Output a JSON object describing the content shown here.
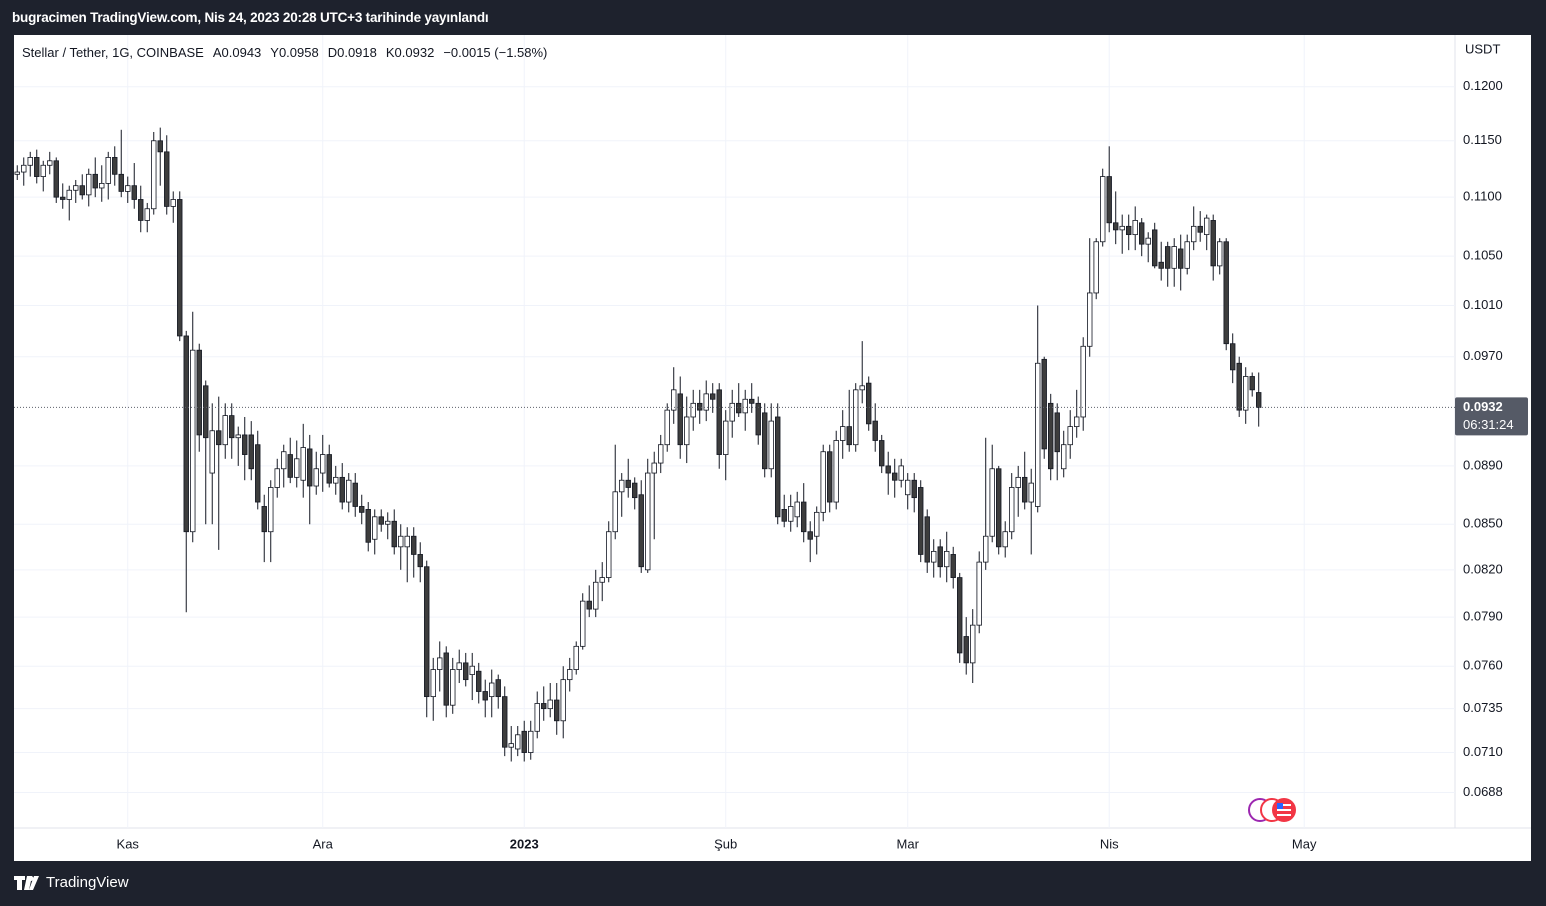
{
  "header": "bugracimen TradingView.com, Nis 24, 2023 20:28 UTC+3 tarihinde yayınlandı",
  "footer": "TradingView",
  "chart_data": {
    "type": "candlestick",
    "legend": {
      "symbol": "Stellar / Tether, 1G, COINBASE",
      "values": [
        "A0.0943",
        "Y0.0958",
        "D0.0918",
        "K0.0932",
        "−0.0015 (−1.58%)"
      ]
    },
    "y_unit": "USDT",
    "log_scale": true,
    "grid": true,
    "up_color": "#ffffff",
    "down_color": "#3d3d3d",
    "wick_color": "#131722",
    "ylim": [
      0.0669,
      0.125
    ],
    "yticks": [
      {
        "value": 0.12,
        "label": "0.1200"
      },
      {
        "value": 0.115,
        "label": "0.1150"
      },
      {
        "value": 0.11,
        "label": "0.1100"
      },
      {
        "value": 0.105,
        "label": "0.1050"
      },
      {
        "value": 0.101,
        "label": "0.1010"
      },
      {
        "value": 0.097,
        "label": "0.0970"
      },
      {
        "value": 0.089,
        "label": "0.0890"
      },
      {
        "value": 0.085,
        "label": "0.0850"
      },
      {
        "value": 0.082,
        "label": "0.0820"
      },
      {
        "value": 0.079,
        "label": "0.0790"
      },
      {
        "value": 0.076,
        "label": "0.0760"
      },
      {
        "value": 0.0735,
        "label": "0.0735"
      },
      {
        "value": 0.071,
        "label": "0.0710"
      },
      {
        "value": 0.0688,
        "label": "0.0688"
      }
    ],
    "xlim": [
      -0.5,
      221.2
    ],
    "xticks": [
      {
        "value": 17,
        "label": "Kas"
      },
      {
        "value": 47,
        "label": "Ara"
      },
      {
        "value": 78,
        "label": "2023"
      },
      {
        "value": 109,
        "label": "Şub"
      },
      {
        "value": 137,
        "label": "Mar"
      },
      {
        "value": 168,
        "label": "Nis"
      },
      {
        "value": 198,
        "label": "May"
      }
    ],
    "last_price": 0.0932,
    "countdown": "06:31:24",
    "ohlc": [
      [
        0.112,
        0.1128,
        0.1115,
        0.1122
      ],
      [
        0.1122,
        0.1135,
        0.111,
        0.1128
      ],
      [
        0.1128,
        0.114,
        0.1118,
        0.1135
      ],
      [
        0.1135,
        0.1142,
        0.1112,
        0.1118
      ],
      [
        0.1118,
        0.1132,
        0.1105,
        0.1128
      ],
      [
        0.1128,
        0.114,
        0.112,
        0.1132
      ],
      [
        0.1132,
        0.1135,
        0.1095,
        0.11
      ],
      [
        0.11,
        0.1112,
        0.109,
        0.1098
      ],
      [
        0.1098,
        0.111,
        0.108,
        0.1106
      ],
      [
        0.1106,
        0.1115,
        0.1095,
        0.111
      ],
      [
        0.111,
        0.112,
        0.1098,
        0.1102
      ],
      [
        0.1102,
        0.1125,
        0.1092,
        0.112
      ],
      [
        0.112,
        0.1135,
        0.11,
        0.1108
      ],
      [
        0.1108,
        0.1128,
        0.1096,
        0.1112
      ],
      [
        0.1112,
        0.114,
        0.1098,
        0.1135
      ],
      [
        0.1135,
        0.1145,
        0.111,
        0.112
      ],
      [
        0.112,
        0.116,
        0.11,
        0.1105
      ],
      [
        0.1105,
        0.1118,
        0.1095,
        0.111
      ],
      [
        0.111,
        0.113,
        0.109,
        0.1098
      ],
      [
        0.1098,
        0.111,
        0.107,
        0.108
      ],
      [
        0.108,
        0.1095,
        0.107,
        0.109
      ],
      [
        0.109,
        0.1158,
        0.1085,
        0.115
      ],
      [
        0.115,
        0.1162,
        0.111,
        0.114
      ],
      [
        0.114,
        0.1155,
        0.1085,
        0.1092
      ],
      [
        0.1092,
        0.1105,
        0.1078,
        0.1098
      ],
      [
        0.1098,
        0.1105,
        0.0982,
        0.0986
      ],
      [
        0.0986,
        0.099,
        0.0793,
        0.0845
      ],
      [
        0.0845,
        0.1005,
        0.0838,
        0.0975
      ],
      [
        0.0975,
        0.098,
        0.09,
        0.0912
      ],
      [
        0.0948,
        0.0952,
        0.085,
        0.091
      ],
      [
        0.0885,
        0.0935,
        0.085,
        0.0915
      ],
      [
        0.0915,
        0.094,
        0.0833,
        0.0905
      ],
      [
        0.0905,
        0.0935,
        0.0895,
        0.0926
      ],
      [
        0.0926,
        0.0935,
        0.0895,
        0.091
      ],
      [
        0.091,
        0.0918,
        0.089,
        0.0912
      ],
      [
        0.0912,
        0.0925,
        0.088,
        0.0898
      ],
      [
        0.0912,
        0.0922,
        0.088,
        0.0888
      ],
      [
        0.0905,
        0.0915,
        0.086,
        0.0865
      ],
      [
        0.0862,
        0.087,
        0.0825,
        0.0845
      ],
      [
        0.0845,
        0.088,
        0.0825,
        0.0875
      ],
      [
        0.0875,
        0.0895,
        0.0868,
        0.0888
      ],
      [
        0.0888,
        0.0905,
        0.0875,
        0.09
      ],
      [
        0.0898,
        0.091,
        0.0878,
        0.0882
      ],
      [
        0.0882,
        0.0908,
        0.0875,
        0.0895
      ],
      [
        0.088,
        0.092,
        0.0868,
        0.0903
      ],
      [
        0.0902,
        0.0912,
        0.085,
        0.0876
      ],
      [
        0.0876,
        0.09,
        0.087,
        0.0888
      ],
      [
        0.0885,
        0.0912,
        0.0872,
        0.0898
      ],
      [
        0.0898,
        0.0905,
        0.0875,
        0.0878
      ],
      [
        0.0878,
        0.089,
        0.087,
        0.0882
      ],
      [
        0.0882,
        0.0892,
        0.086,
        0.0865
      ],
      [
        0.0865,
        0.0885,
        0.0858,
        0.088
      ],
      [
        0.0878,
        0.0885,
        0.0855,
        0.0862
      ],
      [
        0.0862,
        0.087,
        0.085,
        0.0858
      ],
      [
        0.086,
        0.0865,
        0.0832,
        0.0838
      ],
      [
        0.084,
        0.086,
        0.083,
        0.0855
      ],
      [
        0.0855,
        0.086,
        0.0845,
        0.085
      ],
      [
        0.085,
        0.0858,
        0.084,
        0.0852
      ],
      [
        0.0852,
        0.086,
        0.083,
        0.0835
      ],
      [
        0.0835,
        0.085,
        0.082,
        0.0842
      ],
      [
        0.0835,
        0.0848,
        0.0812,
        0.0842
      ],
      [
        0.0842,
        0.0848,
        0.0815,
        0.083
      ],
      [
        0.083,
        0.0838,
        0.0812,
        0.0822
      ],
      [
        0.0822,
        0.0826,
        0.073,
        0.0742
      ],
      [
        0.0742,
        0.0765,
        0.0728,
        0.0758
      ],
      [
        0.0758,
        0.0775,
        0.0745,
        0.0765
      ],
      [
        0.0768,
        0.0772,
        0.073,
        0.0737
      ],
      [
        0.0737,
        0.0765,
        0.0732,
        0.0758
      ],
      [
        0.0758,
        0.077,
        0.075,
        0.0762
      ],
      [
        0.0762,
        0.0768,
        0.0748,
        0.0752
      ],
      [
        0.0755,
        0.0768,
        0.074,
        0.076
      ],
      [
        0.0757,
        0.0762,
        0.0738,
        0.0745
      ],
      [
        0.0745,
        0.0752,
        0.073,
        0.074
      ],
      [
        0.0742,
        0.0758,
        0.073,
        0.075
      ],
      [
        0.0752,
        0.0755,
        0.0735,
        0.0742
      ],
      [
        0.0742,
        0.0748,
        0.0708,
        0.0713
      ],
      [
        0.0713,
        0.0725,
        0.0705,
        0.0715
      ],
      [
        0.0712,
        0.0725,
        0.0708,
        0.072
      ],
      [
        0.0722,
        0.0728,
        0.0705,
        0.071
      ],
      [
        0.071,
        0.0728,
        0.0706,
        0.0722
      ],
      [
        0.0722,
        0.0745,
        0.0718,
        0.0738
      ],
      [
        0.0738,
        0.0748,
        0.0728,
        0.0735
      ],
      [
        0.0735,
        0.075,
        0.073,
        0.074
      ],
      [
        0.074,
        0.075,
        0.072,
        0.0728
      ],
      [
        0.0728,
        0.076,
        0.0718,
        0.0752
      ],
      [
        0.0752,
        0.0765,
        0.0745,
        0.0758
      ],
      [
        0.0758,
        0.0775,
        0.0755,
        0.0772
      ],
      [
        0.0772,
        0.0805,
        0.077,
        0.08
      ],
      [
        0.08,
        0.081,
        0.079,
        0.0795
      ],
      [
        0.0795,
        0.082,
        0.079,
        0.0812
      ],
      [
        0.0812,
        0.0825,
        0.08,
        0.0815
      ],
      [
        0.0815,
        0.0852,
        0.0812,
        0.0845
      ],
      [
        0.0845,
        0.0905,
        0.084,
        0.0872
      ],
      [
        0.0872,
        0.0885,
        0.0855,
        0.088
      ],
      [
        0.088,
        0.0895,
        0.0868,
        0.0875
      ],
      [
        0.0878,
        0.0882,
        0.086,
        0.0868
      ],
      [
        0.087,
        0.088,
        0.0818,
        0.0822
      ],
      [
        0.082,
        0.0895,
        0.0818,
        0.0885
      ],
      [
        0.0885,
        0.09,
        0.084,
        0.0892
      ],
      [
        0.0892,
        0.0912,
        0.0885,
        0.0905
      ],
      [
        0.0905,
        0.0935,
        0.09,
        0.093
      ],
      [
        0.093,
        0.0962,
        0.092,
        0.0945
      ],
      [
        0.0942,
        0.0955,
        0.0895,
        0.0905
      ],
      [
        0.0905,
        0.094,
        0.0892,
        0.0925
      ],
      [
        0.0925,
        0.0945,
        0.0915,
        0.0935
      ],
      [
        0.0935,
        0.0945,
        0.092,
        0.093
      ],
      [
        0.093,
        0.0952,
        0.0922,
        0.0942
      ],
      [
        0.0942,
        0.095,
        0.0928,
        0.0938
      ],
      [
        0.0945,
        0.095,
        0.0888,
        0.0898
      ],
      [
        0.0898,
        0.093,
        0.088,
        0.0922
      ],
      [
        0.0922,
        0.0945,
        0.091,
        0.0935
      ],
      [
        0.0935,
        0.095,
        0.0925,
        0.0928
      ],
      [
        0.0928,
        0.0945,
        0.0915,
        0.0938
      ],
      [
        0.0938,
        0.095,
        0.0928,
        0.0935
      ],
      [
        0.0935,
        0.094,
        0.0905,
        0.0912
      ],
      [
        0.0928,
        0.0935,
        0.0882,
        0.0888
      ],
      [
        0.0888,
        0.0935,
        0.0882,
        0.0922
      ],
      [
        0.0925,
        0.0935,
        0.085,
        0.0855
      ],
      [
        0.086,
        0.087,
        0.0848,
        0.0852
      ],
      [
        0.0852,
        0.087,
        0.0845,
        0.0862
      ],
      [
        0.0855,
        0.0872,
        0.0848,
        0.0865
      ],
      [
        0.0865,
        0.0878,
        0.0838,
        0.0845
      ],
      [
        0.0845,
        0.0852,
        0.0825,
        0.084
      ],
      [
        0.0842,
        0.0862,
        0.083,
        0.0858
      ],
      [
        0.0858,
        0.0905,
        0.0852,
        0.09
      ],
      [
        0.09,
        0.0905,
        0.0858,
        0.0865
      ],
      [
        0.0865,
        0.0915,
        0.086,
        0.0908
      ],
      [
        0.0908,
        0.093,
        0.0895,
        0.0918
      ],
      [
        0.0918,
        0.0945,
        0.09,
        0.0905
      ],
      [
        0.0905,
        0.095,
        0.09,
        0.0945
      ],
      [
        0.0945,
        0.0982,
        0.0935,
        0.0948
      ],
      [
        0.095,
        0.0955,
        0.0915,
        0.092
      ],
      [
        0.0922,
        0.0935,
        0.09,
        0.0908
      ],
      [
        0.0908,
        0.0912,
        0.0885,
        0.089
      ],
      [
        0.089,
        0.09,
        0.087,
        0.0885
      ],
      [
        0.0885,
        0.0895,
        0.0868,
        0.088
      ],
      [
        0.088,
        0.0895,
        0.0875,
        0.089
      ],
      [
        0.087,
        0.0885,
        0.086,
        0.088
      ],
      [
        0.088,
        0.0885,
        0.0858,
        0.0868
      ],
      [
        0.0875,
        0.088,
        0.0825,
        0.083
      ],
      [
        0.0855,
        0.086,
        0.0818,
        0.0825
      ],
      [
        0.0825,
        0.084,
        0.0815,
        0.0832
      ],
      [
        0.0835,
        0.084,
        0.0815,
        0.0822
      ],
      [
        0.0822,
        0.0845,
        0.0812,
        0.0832
      ],
      [
        0.083,
        0.0835,
        0.0808,
        0.0815
      ],
      [
        0.0815,
        0.0818,
        0.0762,
        0.0768
      ],
      [
        0.0778,
        0.079,
        0.0755,
        0.0762
      ],
      [
        0.0762,
        0.0795,
        0.075,
        0.0785
      ],
      [
        0.0785,
        0.0832,
        0.078,
        0.0825
      ],
      [
        0.0825,
        0.091,
        0.082,
        0.0842
      ],
      [
        0.0842,
        0.0905,
        0.0838,
        0.0888
      ],
      [
        0.0888,
        0.089,
        0.083,
        0.0835
      ],
      [
        0.0835,
        0.0852,
        0.0828,
        0.0845
      ],
      [
        0.0845,
        0.0885,
        0.084,
        0.0875
      ],
      [
        0.0875,
        0.089,
        0.0855,
        0.0882
      ],
      [
        0.0882,
        0.09,
        0.086,
        0.0865
      ],
      [
        0.0865,
        0.0888,
        0.083,
        0.0878
      ],
      [
        0.0862,
        0.101,
        0.0858,
        0.0965
      ],
      [
        0.0968,
        0.097,
        0.0895,
        0.0902
      ],
      [
        0.0935,
        0.0942,
        0.088,
        0.0888
      ],
      [
        0.0928,
        0.0935,
        0.088,
        0.09
      ],
      [
        0.0888,
        0.0915,
        0.0882,
        0.0905
      ],
      [
        0.0905,
        0.093,
        0.0895,
        0.0918
      ],
      [
        0.0918,
        0.0945,
        0.091,
        0.0925
      ],
      [
        0.0925,
        0.0985,
        0.0915,
        0.0978
      ],
      [
        0.0978,
        0.1065,
        0.097,
        0.102
      ],
      [
        0.102,
        0.1065,
        0.1015,
        0.1062
      ],
      [
        0.1062,
        0.1125,
        0.1058,
        0.1118
      ],
      [
        0.1118,
        0.1145,
        0.107,
        0.1078
      ],
      [
        0.1078,
        0.1105,
        0.106,
        0.1072
      ],
      [
        0.1072,
        0.1085,
        0.1052,
        0.1075
      ],
      [
        0.1075,
        0.1085,
        0.1055,
        0.1068
      ],
      [
        0.1068,
        0.1092,
        0.1055,
        0.108
      ],
      [
        0.1078,
        0.1082,
        0.105,
        0.106
      ],
      [
        0.106,
        0.107,
        0.1045,
        0.1065
      ],
      [
        0.1072,
        0.1078,
        0.104,
        0.1042
      ],
      [
        0.1045,
        0.1062,
        0.103,
        0.104
      ],
      [
        0.1058,
        0.1062,
        0.1025,
        0.104
      ],
      [
        0.104,
        0.1065,
        0.1025,
        0.1058
      ],
      [
        0.1056,
        0.1068,
        0.1022,
        0.104
      ],
      [
        0.104,
        0.1068,
        0.1035,
        0.1062
      ],
      [
        0.1062,
        0.1092,
        0.1055,
        0.1075
      ],
      [
        0.1075,
        0.1088,
        0.1062,
        0.107
      ],
      [
        0.1068,
        0.1085,
        0.1055,
        0.1082
      ],
      [
        0.108,
        0.1085,
        0.103,
        0.1042
      ],
      [
        0.1042,
        0.1065,
        0.1035,
        0.1062
      ],
      [
        0.1062,
        0.1065,
        0.0975,
        0.098
      ],
      [
        0.098,
        0.0988,
        0.095,
        0.096
      ],
      [
        0.0965,
        0.097,
        0.0925,
        0.093
      ],
      [
        0.093,
        0.0962,
        0.092,
        0.0955
      ],
      [
        0.0955,
        0.0958,
        0.094,
        0.0945
      ],
      [
        0.0943,
        0.0958,
        0.0918,
        0.0932
      ]
    ]
  }
}
